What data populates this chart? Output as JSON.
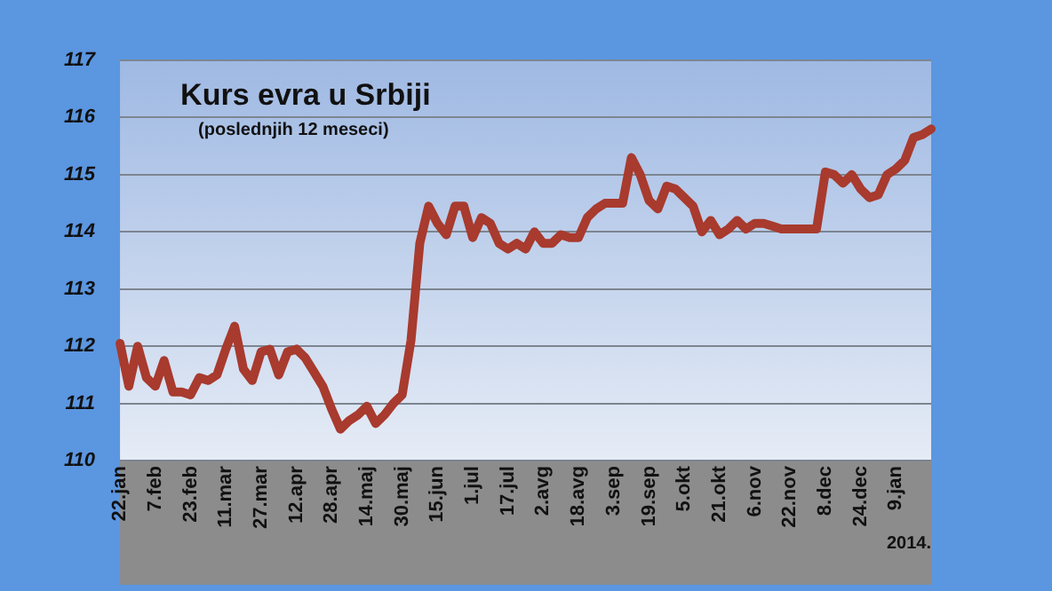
{
  "chart_data": {
    "type": "line",
    "title": "Kurs evra u Srbiji",
    "subtitle": "(poslednjih 12 meseci)",
    "annotations": [
      "2014."
    ],
    "categories": [
      "22.jan",
      null,
      null,
      null,
      "7.feb",
      null,
      null,
      null,
      "23.feb",
      null,
      null,
      null,
      "11.mar",
      null,
      null,
      null,
      "27.mar",
      null,
      null,
      null,
      "12.apr",
      null,
      null,
      null,
      "28.apr",
      null,
      null,
      null,
      "14.maj",
      null,
      null,
      null,
      "30.maj",
      null,
      null,
      null,
      "15.jun",
      null,
      null,
      null,
      "1.jul",
      null,
      null,
      null,
      "17.jul",
      null,
      null,
      null,
      "2.avg",
      null,
      null,
      null,
      "18.avg",
      null,
      null,
      null,
      "3.sep",
      null,
      null,
      null,
      "19.sep",
      null,
      null,
      null,
      "5.okt",
      null,
      null,
      null,
      "21.okt",
      null,
      null,
      null,
      "6.nov",
      null,
      null,
      null,
      "22.nov",
      null,
      null,
      null,
      "8.dec",
      null,
      null,
      null,
      "24.dec",
      null,
      null,
      null,
      "9.jan",
      null,
      null,
      null,
      null
    ],
    "series": [
      {
        "color": "#a83a2e",
        "values": [
          112.05,
          111.3,
          112.0,
          111.45,
          111.3,
          111.75,
          111.2,
          111.2,
          111.15,
          111.45,
          111.4,
          111.5,
          111.95,
          112.35,
          111.6,
          111.4,
          111.9,
          111.95,
          111.5,
          111.9,
          111.95,
          111.8,
          111.55,
          111.3,
          110.9,
          110.55,
          110.7,
          110.8,
          110.95,
          110.65,
          110.8,
          111.0,
          111.15,
          112.1,
          113.8,
          114.45,
          114.15,
          113.95,
          114.45,
          114.45,
          113.9,
          114.25,
          114.15,
          113.8,
          113.7,
          113.8,
          113.7,
          114.0,
          113.8,
          113.8,
          113.95,
          113.9,
          113.9,
          114.25,
          114.4,
          114.5,
          114.5,
          114.5,
          115.3,
          115.0,
          114.55,
          114.4,
          114.8,
          114.75,
          114.6,
          114.45,
          114.0,
          114.2,
          113.95,
          114.05,
          114.2,
          114.05,
          114.15,
          114.15,
          114.1,
          114.05,
          114.05,
          114.05,
          114.05,
          114.05,
          115.05,
          115.0,
          114.85,
          115.0,
          114.75,
          114.6,
          114.65,
          115.0,
          115.1,
          115.25,
          115.65,
          115.7,
          115.8
        ]
      }
    ],
    "ylim": [
      110,
      117
    ],
    "yticks": [
      110,
      111,
      112,
      113,
      114,
      115,
      116,
      117
    ],
    "grid": "y",
    "legend": false,
    "marker": "none",
    "line_style": "solid"
  }
}
